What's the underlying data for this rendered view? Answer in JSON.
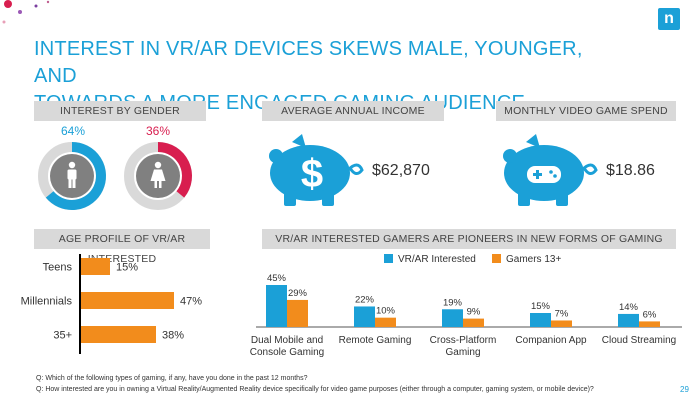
{
  "slide": {
    "title_line1": "INTEREST IN VR/AR DEVICES SKEWS MALE, YOUNGER, AND",
    "title_line2": "TOWARDS A MORE ENGAGED GAMING AUDIENCE",
    "logo_letter": "n",
    "page_number": "29",
    "footnote1": "Q: Which of the following types of gaming, if any, have you done in the past 12 months?",
    "footnote2": "Q: How interested are you in owning a Virtual Reality/Augmented Reality device specifically for video game purposes (either through a computer, gaming system, or mobile device)?",
    "colors": {
      "accent": "#1ba0d7",
      "orange": "#f28c1c",
      "female": "#d81e4f",
      "grey": "#d9d9d9"
    }
  },
  "gender": {
    "header": "INTEREST BY GENDER",
    "male_label": "64%",
    "female_label": "36%"
  },
  "income": {
    "header": "AVERAGE ANNUAL INCOME",
    "value": "$62,870",
    "icon": "piggy-bank-dollar-icon"
  },
  "spend": {
    "header": "MONTHLY VIDEO GAME SPEND",
    "value": "$18.86",
    "icon": "piggy-bank-gamepad-icon"
  },
  "age": {
    "header": "AGE PROFILE OF VR/AR INTERESTED"
  },
  "pioneers": {
    "header": "VR/AR INTERESTED GAMERS ARE PIONEERS IN NEW FORMS OF GAMING"
  },
  "chart_data": [
    {
      "type": "pie",
      "categories": [
        "Male",
        "Female"
      ],
      "values": [
        64,
        36
      ]
    },
    {
      "type": "bar",
      "orientation": "horizontal",
      "categories": [
        "Teens",
        "Millennials",
        "35+"
      ],
      "values": [
        15,
        47,
        38
      ],
      "labels": [
        "15%",
        "47%",
        "38%"
      ],
      "color": "#f28c1c"
    },
    {
      "type": "bar",
      "categories": [
        "Dual Mobile and Console Gaming",
        "Remote Gaming",
        "Cross-Platform Gaming",
        "Companion App",
        "Cloud Streaming"
      ],
      "category_lines": [
        [
          "Dual Mobile and",
          "Console Gaming"
        ],
        [
          "Remote Gaming"
        ],
        [
          "Cross-Platform",
          "Gaming"
        ],
        [
          "Companion App"
        ],
        [
          "Cloud Streaming"
        ]
      ],
      "series": [
        {
          "name": "VR/AR Interested",
          "values": [
            45,
            22,
            19,
            15,
            14
          ],
          "labels": [
            "45%",
            "22%",
            "19%",
            "15%",
            "14%"
          ],
          "color": "#1ba0d7"
        },
        {
          "name": "Gamers 13+",
          "values": [
            29,
            10,
            9,
            7,
            6
          ],
          "labels": [
            "29%",
            "10%",
            "9%",
            "7%",
            "6%"
          ],
          "color": "#f28c1c"
        }
      ],
      "legend": "top"
    }
  ]
}
